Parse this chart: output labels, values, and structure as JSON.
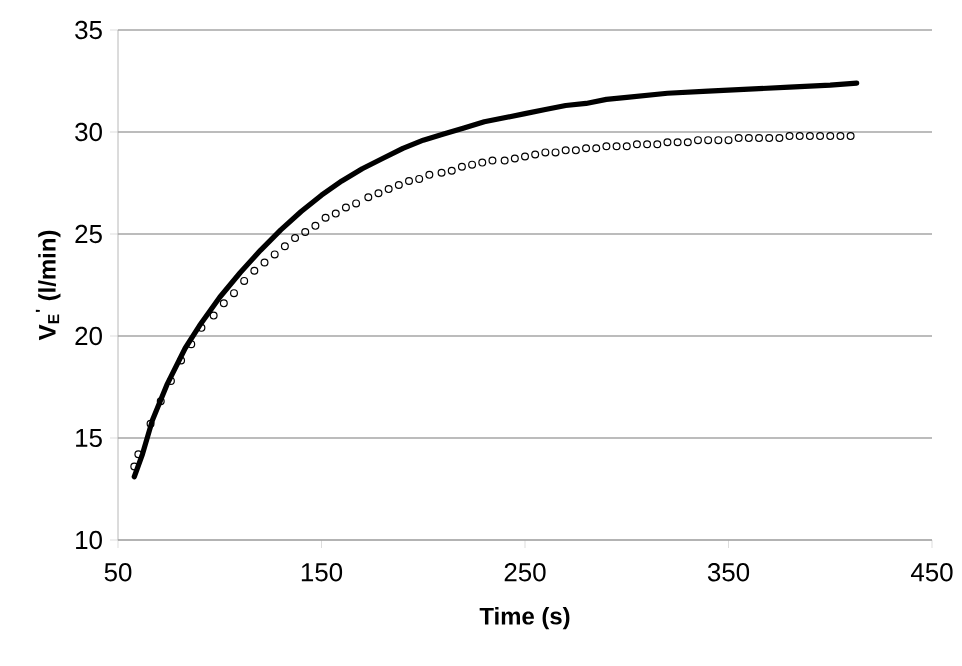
{
  "chart_data": {
    "type": "line",
    "xlabel": "Time (s)",
    "ylabel": "V$_{E}$$^{'}$ (l/min)",
    "xlim": [
      50,
      450
    ],
    "xticks": [
      50,
      150,
      250,
      350,
      450
    ],
    "ylim": [
      10,
      35
    ],
    "yticks": [
      10,
      15,
      20,
      25,
      30,
      35
    ],
    "grid": "y",
    "series": [
      {
        "type": "scatter",
        "marker": "circle",
        "color": "#000000",
        "x": [
          58,
          60,
          66,
          71,
          76,
          81,
          86,
          91,
          97,
          102,
          107,
          112,
          117,
          122,
          127,
          132,
          137,
          142,
          147,
          152,
          157,
          162,
          167,
          173,
          178,
          183,
          188,
          193,
          198,
          203,
          209,
          214,
          219,
          224,
          229,
          234,
          240,
          245,
          250,
          255,
          260,
          265,
          270,
          275,
          280,
          285,
          290,
          295,
          300,
          305,
          310,
          315,
          320,
          325,
          330,
          335,
          340,
          345,
          350,
          355,
          360,
          365,
          370,
          375,
          380,
          385,
          390,
          395,
          400,
          405,
          410
        ],
        "values": [
          13.6,
          14.2,
          15.7,
          16.8,
          17.8,
          18.8,
          19.6,
          20.4,
          21.0,
          21.6,
          22.1,
          22.7,
          23.2,
          23.6,
          24.0,
          24.4,
          24.8,
          25.1,
          25.4,
          25.8,
          26.0,
          26.3,
          26.5,
          26.8,
          27.0,
          27.2,
          27.4,
          27.6,
          27.7,
          27.9,
          28.0,
          28.1,
          28.3,
          28.4,
          28.5,
          28.6,
          28.6,
          28.7,
          28.8,
          28.9,
          29.0,
          29.0,
          29.1,
          29.1,
          29.2,
          29.2,
          29.3,
          29.3,
          29.3,
          29.4,
          29.4,
          29.4,
          29.5,
          29.5,
          29.5,
          29.6,
          29.6,
          29.6,
          29.6,
          29.7,
          29.7,
          29.7,
          29.7,
          29.7,
          29.8,
          29.8,
          29.8,
          29.8,
          29.8,
          29.8,
          29.8
        ]
      },
      {
        "marker": "none",
        "line_style": "solid",
        "color": "#000000",
        "x": [
          58,
          62,
          67,
          74,
          83,
          90,
          100,
          110,
          120,
          130,
          140,
          150,
          160,
          170,
          180,
          190,
          200,
          210,
          220,
          230,
          240,
          250,
          260,
          270,
          280,
          290,
          300,
          320,
          340,
          360,
          380,
          400,
          413
        ],
        "values": [
          13.1,
          14.2,
          15.9,
          17.6,
          19.4,
          20.5,
          21.9,
          23.1,
          24.2,
          25.2,
          26.1,
          26.9,
          27.6,
          28.2,
          28.7,
          29.2,
          29.6,
          29.9,
          30.2,
          30.5,
          30.7,
          30.9,
          31.1,
          31.3,
          31.4,
          31.6,
          31.7,
          31.9,
          32.0,
          32.1,
          32.2,
          32.3,
          32.4
        ]
      }
    ]
  }
}
